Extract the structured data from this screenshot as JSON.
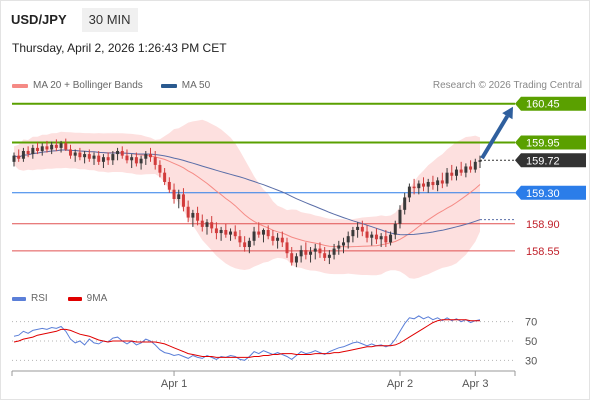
{
  "header": {
    "symbol": "USD/JPY",
    "timeframe": "30 MIN"
  },
  "timestamp": "Thursday, April 2, 2026 1:26:43 PM CET",
  "legend": {
    "price": [
      {
        "label": "MA 20 + Bollinger Bands",
        "color": "#f58a85"
      },
      {
        "label": "MA 50",
        "color": "#2a5a8f"
      }
    ],
    "rsi": [
      {
        "label": "RSI",
        "color": "#5b7fd8"
      },
      {
        "label": "9MA",
        "color": "#e00000"
      }
    ]
  },
  "copyright": "Research © 2026 Trading Central",
  "colors": {
    "up": "#3a3a3a",
    "down": "#d23c3c",
    "target": "#5aa000",
    "pivot": "#2b7de9",
    "support": "#e05050",
    "arrow": "#2f5f9e",
    "bands": "#fde0df"
  },
  "levels": [
    {
      "value": "160.45",
      "type": "resistance"
    },
    {
      "value": "159.95",
      "type": "resistance"
    },
    {
      "value": "159.72",
      "type": "current"
    },
    {
      "value": "159.30",
      "type": "pivot"
    },
    {
      "value": "158.90",
      "type": "support"
    },
    {
      "value": "158.55",
      "type": "support"
    }
  ],
  "x_labels": [
    "Apr 1",
    "Apr 2",
    "Apr 3"
  ],
  "rsi_ticks": [
    "70",
    "50",
    "30"
  ],
  "chart_data": {
    "type": "candlestick",
    "ylim": [
      158.2,
      160.55
    ],
    "ohlc": [
      [
        159.7,
        159.82,
        159.64,
        159.78
      ],
      [
        159.78,
        159.86,
        159.7,
        159.74
      ],
      [
        159.74,
        159.88,
        159.7,
        159.84
      ],
      [
        159.84,
        159.9,
        159.76,
        159.8
      ],
      [
        159.8,
        159.92,
        159.74,
        159.88
      ],
      [
        159.88,
        159.95,
        159.8,
        159.84
      ],
      [
        159.84,
        159.94,
        159.78,
        159.9
      ],
      [
        159.9,
        159.97,
        159.82,
        159.86
      ],
      [
        159.86,
        159.96,
        159.8,
        159.92
      ],
      [
        159.92,
        159.99,
        159.84,
        159.88
      ],
      [
        159.88,
        159.97,
        159.82,
        159.94
      ],
      [
        159.94,
        160.0,
        159.84,
        159.86
      ],
      [
        159.86,
        159.92,
        159.74,
        159.78
      ],
      [
        159.78,
        159.86,
        159.7,
        159.82
      ],
      [
        159.82,
        159.88,
        159.72,
        159.76
      ],
      [
        159.76,
        159.84,
        159.68,
        159.8
      ],
      [
        159.8,
        159.86,
        159.7,
        159.74
      ],
      [
        159.74,
        159.82,
        159.66,
        159.78
      ],
      [
        159.78,
        159.84,
        159.66,
        159.7
      ],
      [
        159.7,
        159.8,
        159.62,
        159.76
      ],
      [
        159.76,
        159.82,
        159.66,
        159.72
      ],
      [
        159.72,
        159.84,
        159.66,
        159.8
      ],
      [
        159.8,
        159.88,
        159.72,
        159.84
      ],
      [
        159.84,
        159.9,
        159.74,
        159.78
      ],
      [
        159.78,
        159.86,
        159.68,
        159.72
      ],
      [
        159.72,
        159.8,
        159.62,
        159.76
      ],
      [
        159.76,
        159.82,
        159.64,
        159.68
      ],
      [
        159.68,
        159.78,
        159.6,
        159.74
      ],
      [
        159.74,
        159.84,
        159.66,
        159.8
      ],
      [
        159.8,
        159.88,
        159.7,
        159.76
      ],
      [
        159.76,
        159.84,
        159.6,
        159.66
      ],
      [
        159.66,
        159.72,
        159.5,
        159.56
      ],
      [
        159.56,
        159.62,
        159.4,
        159.44
      ],
      [
        159.44,
        159.5,
        159.3,
        159.34
      ],
      [
        159.34,
        159.42,
        159.16,
        159.22
      ],
      [
        159.22,
        159.34,
        159.1,
        159.28
      ],
      [
        159.28,
        159.36,
        159.06,
        159.12
      ],
      [
        159.12,
        159.2,
        158.92,
        158.98
      ],
      [
        158.98,
        159.08,
        158.86,
        159.04
      ],
      [
        159.04,
        159.12,
        158.88,
        158.94
      ],
      [
        158.94,
        159.02,
        158.8,
        158.86
      ],
      [
        158.86,
        158.96,
        158.76,
        158.92
      ],
      [
        158.92,
        159.0,
        158.78,
        158.84
      ],
      [
        158.84,
        158.92,
        158.7,
        158.78
      ],
      [
        158.78,
        158.86,
        158.68,
        158.82
      ],
      [
        158.82,
        158.9,
        158.72,
        158.76
      ],
      [
        158.76,
        158.84,
        158.68,
        158.8
      ],
      [
        158.8,
        158.88,
        158.7,
        158.74
      ],
      [
        158.74,
        158.82,
        158.6,
        158.66
      ],
      [
        158.66,
        158.74,
        158.54,
        158.6
      ],
      [
        158.6,
        158.72,
        158.52,
        158.68
      ],
      [
        158.68,
        158.86,
        158.62,
        158.8
      ],
      [
        158.8,
        158.92,
        158.72,
        158.76
      ],
      [
        158.76,
        158.84,
        158.66,
        158.82
      ],
      [
        158.82,
        158.88,
        158.7,
        158.74
      ],
      [
        158.74,
        158.82,
        158.62,
        158.68
      ],
      [
        158.68,
        158.78,
        158.58,
        158.72
      ],
      [
        158.72,
        158.8,
        158.6,
        158.66
      ],
      [
        158.66,
        158.72,
        158.46,
        158.52
      ],
      [
        158.52,
        158.6,
        158.36,
        158.4
      ],
      [
        158.4,
        158.52,
        158.34,
        158.48
      ],
      [
        158.48,
        158.62,
        158.4,
        158.56
      ],
      [
        158.56,
        158.66,
        158.44,
        158.5
      ],
      [
        158.5,
        158.6,
        158.4,
        158.54
      ],
      [
        158.54,
        158.64,
        158.44,
        158.58
      ],
      [
        158.58,
        158.66,
        158.46,
        158.52
      ],
      [
        158.52,
        158.6,
        158.42,
        158.46
      ],
      [
        158.46,
        158.56,
        158.38,
        158.5
      ],
      [
        158.5,
        158.64,
        158.44,
        158.58
      ],
      [
        158.58,
        158.68,
        158.5,
        158.62
      ],
      [
        158.62,
        158.72,
        158.52,
        158.66
      ],
      [
        158.66,
        158.8,
        158.58,
        158.74
      ],
      [
        158.74,
        158.86,
        158.66,
        158.82
      ],
      [
        158.82,
        158.92,
        158.72,
        158.86
      ],
      [
        158.86,
        158.94,
        158.74,
        158.8
      ],
      [
        158.8,
        158.88,
        158.66,
        158.72
      ],
      [
        158.72,
        158.8,
        158.62,
        158.76
      ],
      [
        158.76,
        158.84,
        158.64,
        158.7
      ],
      [
        158.7,
        158.78,
        158.6,
        158.74
      ],
      [
        158.74,
        158.82,
        158.6,
        158.66
      ],
      [
        158.66,
        158.8,
        158.62,
        158.76
      ],
      [
        158.76,
        158.94,
        158.7,
        158.9
      ],
      [
        158.9,
        159.14,
        158.84,
        159.08
      ],
      [
        159.08,
        159.3,
        159.02,
        159.24
      ],
      [
        159.24,
        159.42,
        159.18,
        159.38
      ],
      [
        159.38,
        159.48,
        159.28,
        159.36
      ],
      [
        159.36,
        159.46,
        159.28,
        159.42
      ],
      [
        159.42,
        159.5,
        159.32,
        159.38
      ],
      [
        159.38,
        159.48,
        159.3,
        159.44
      ],
      [
        159.44,
        159.52,
        159.34,
        159.4
      ],
      [
        159.4,
        159.5,
        159.32,
        159.46
      ],
      [
        159.46,
        159.56,
        159.36,
        159.42
      ],
      [
        159.42,
        159.62,
        159.38,
        159.56
      ],
      [
        159.56,
        159.66,
        159.46,
        159.52
      ],
      [
        159.52,
        159.64,
        159.46,
        159.6
      ],
      [
        159.6,
        159.7,
        159.52,
        159.56
      ],
      [
        159.56,
        159.68,
        159.5,
        159.64
      ],
      [
        159.64,
        159.72,
        159.56,
        159.6
      ],
      [
        159.6,
        159.74,
        159.56,
        159.7
      ],
      [
        159.7,
        159.78,
        159.62,
        159.72
      ]
    ],
    "rsi": [
      55,
      56,
      60,
      58,
      61,
      62,
      63,
      62,
      64,
      63,
      65,
      60,
      52,
      48,
      50,
      46,
      52,
      48,
      47,
      50,
      49,
      53,
      54,
      50,
      47,
      50,
      46,
      48,
      52,
      50,
      46,
      41,
      38,
      37,
      35,
      36,
      34,
      32,
      35,
      33,
      32,
      35,
      33,
      31,
      34,
      33,
      35,
      34,
      31,
      30,
      34,
      39,
      37,
      40,
      38,
      36,
      38,
      36,
      34,
      31,
      35,
      39,
      37,
      38,
      40,
      38,
      36,
      39,
      41,
      43,
      44,
      46,
      48,
      49,
      47,
      45,
      47,
      45,
      46,
      44,
      46,
      52,
      60,
      68,
      74,
      73,
      76,
      73,
      75,
      72,
      74,
      71,
      74,
      71,
      73,
      70,
      72,
      69,
      71,
      72
    ],
    "rsi_ma": [
      49,
      50,
      52,
      53,
      54,
      56,
      57,
      58,
      59,
      60,
      62,
      62,
      61,
      59,
      57,
      56,
      55,
      53,
      51,
      50,
      49,
      50,
      50,
      50,
      50,
      50,
      49,
      49,
      49,
      49,
      49,
      48,
      47,
      45,
      43,
      41,
      39,
      37,
      36,
      35,
      34,
      34,
      34,
      33,
      33,
      33,
      33,
      33,
      33,
      33,
      33,
      34,
      34,
      35,
      35,
      36,
      36,
      37,
      37,
      37,
      36,
      36,
      36,
      36,
      37,
      37,
      37,
      37,
      38,
      38,
      39,
      40,
      41,
      42,
      43,
      44,
      44,
      45,
      45,
      45,
      45,
      46,
      48,
      51,
      54,
      57,
      60,
      63,
      66,
      69,
      71,
      72,
      72,
      72,
      72,
      72,
      72,
      71,
      71,
      71
    ],
    "rsi_ylim": [
      20,
      80
    ]
  }
}
